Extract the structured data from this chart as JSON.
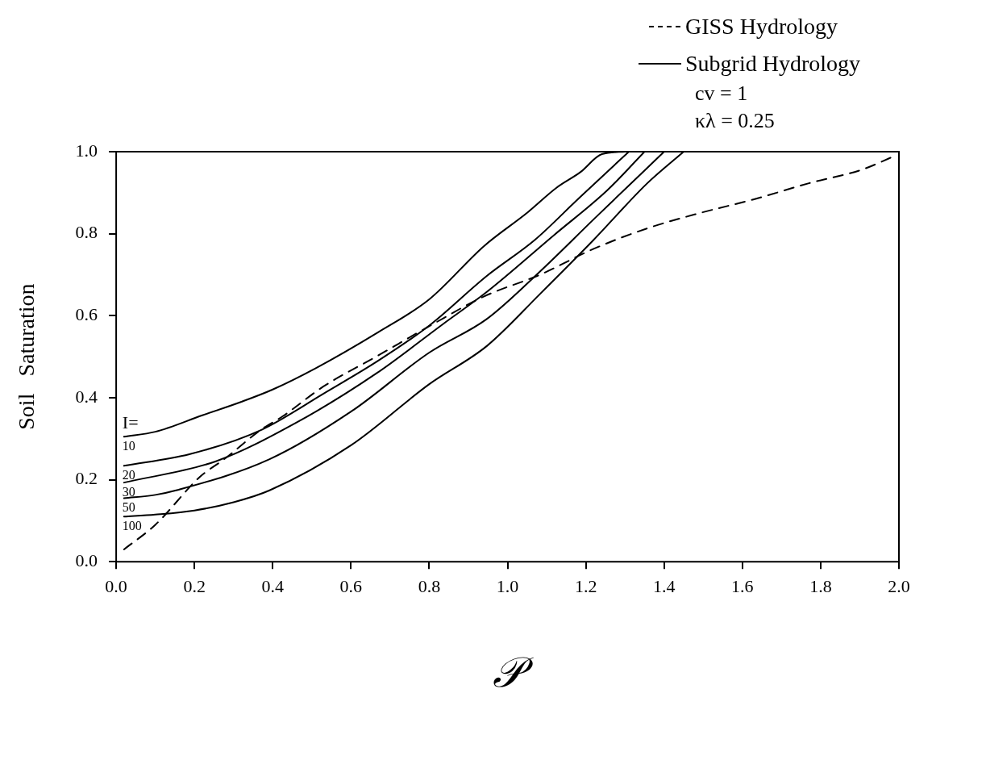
{
  "chart_data": {
    "type": "line",
    "xlabel": "𝒫",
    "ylabel": "Soil   Saturation",
    "xlim": [
      0,
      2
    ],
    "ylim": [
      0,
      1
    ],
    "xticks": [
      {
        "value": 0,
        "label": "0.0"
      },
      {
        "value": 0.2,
        "label": "0.2"
      },
      {
        "value": 0.4,
        "label": "0.4"
      },
      {
        "value": 0.6,
        "label": "0.6"
      },
      {
        "value": 0.8,
        "label": "0.8"
      },
      {
        "value": 1,
        "label": "1.0"
      },
      {
        "value": 1.2,
        "label": "1.2"
      },
      {
        "value": 1.4,
        "label": "1.4"
      },
      {
        "value": 1.6,
        "label": "1.6"
      },
      {
        "value": 1.8,
        "label": "1.8"
      },
      {
        "value": 2,
        "label": "2.0"
      }
    ],
    "yticks": [
      {
        "value": 0,
        "label": "0.0"
      },
      {
        "value": 0.2,
        "label": "0.2"
      },
      {
        "value": 0.4,
        "label": "0.4"
      },
      {
        "value": 0.6,
        "label": "0.6"
      },
      {
        "value": 0.8,
        "label": "0.8"
      },
      {
        "value": 1,
        "label": "1.0"
      }
    ],
    "grid": false,
    "legend": "top right",
    "marker": "none",
    "annotations": [
      "Subgrid Hydrology",
      "cv = 1",
      "κλ = 0.25",
      "I="
    ],
    "series": [
      {
        "name": "GISS Hydrology",
        "color": "#000000",
        "line_style": "dashed",
        "x": [
          0.02,
          0.1,
          0.214,
          0.276,
          0.37,
          0.426,
          0.529,
          0.666,
          0.803,
          0.94,
          1.083,
          1.22,
          1.357,
          1.494,
          1.63,
          1.77,
          1.905,
          1.99
        ],
        "values": [
          0.03,
          0.09,
          0.207,
          0.25,
          0.322,
          0.355,
          0.427,
          0.501,
          0.576,
          0.647,
          0.7,
          0.763,
          0.813,
          0.851,
          0.884,
          0.923,
          0.956,
          0.99
        ]
      },
      {
        "name": "10",
        "color": "#000000",
        "line_style": "solid",
        "x": [
          0.02,
          0.1,
          0.22,
          0.32,
          0.4,
          0.51,
          0.67,
          0.8,
          0.94,
          1.05,
          1.125,
          1.186,
          1.241,
          1.3
        ],
        "values": [
          0.305,
          0.317,
          0.357,
          0.39,
          0.42,
          0.472,
          0.56,
          0.64,
          0.77,
          0.851,
          0.912,
          0.95,
          0.994,
          1
        ]
      },
      {
        "name": "20",
        "color": "#000000",
        "line_style": "solid",
        "x": [
          0.02,
          0.187,
          0.372,
          0.53,
          0.666,
          0.8,
          0.947,
          1.07,
          1.186,
          1.31
        ],
        "values": [
          0.234,
          0.262,
          0.322,
          0.41,
          0.488,
          0.576,
          0.697,
          0.785,
          0.89,
          1
        ]
      },
      {
        "name": "30",
        "color": "#000000",
        "line_style": "solid",
        "x": [
          0.02,
          0.255,
          0.46,
          0.666,
          0.837,
          0.947,
          1.118,
          1.255,
          1.35
        ],
        "values": [
          0.193,
          0.245,
          0.339,
          0.46,
          0.581,
          0.658,
          0.796,
          0.906,
          1
        ]
      },
      {
        "name": "50",
        "color": "#000000",
        "line_style": "solid",
        "x": [
          0.02,
          0.1,
          0.153,
          0.392,
          0.6,
          0.8,
          0.947,
          1.083,
          1.22,
          1.4
        ],
        "values": [
          0.155,
          0.163,
          0.174,
          0.25,
          0.366,
          0.51,
          0.592,
          0.708,
          0.835,
          1
        ]
      },
      {
        "name": "100",
        "color": "#000000",
        "line_style": "solid",
        "x": [
          0.02,
          0.1,
          0.2,
          0.3,
          0.392,
          0.6,
          0.8,
          0.947,
          1.083,
          1.22,
          1.357,
          1.45
        ],
        "values": [
          0.11,
          0.115,
          0.125,
          0.145,
          0.174,
          0.284,
          0.433,
          0.526,
          0.653,
          0.785,
          0.923,
          1
        ]
      }
    ]
  }
}
